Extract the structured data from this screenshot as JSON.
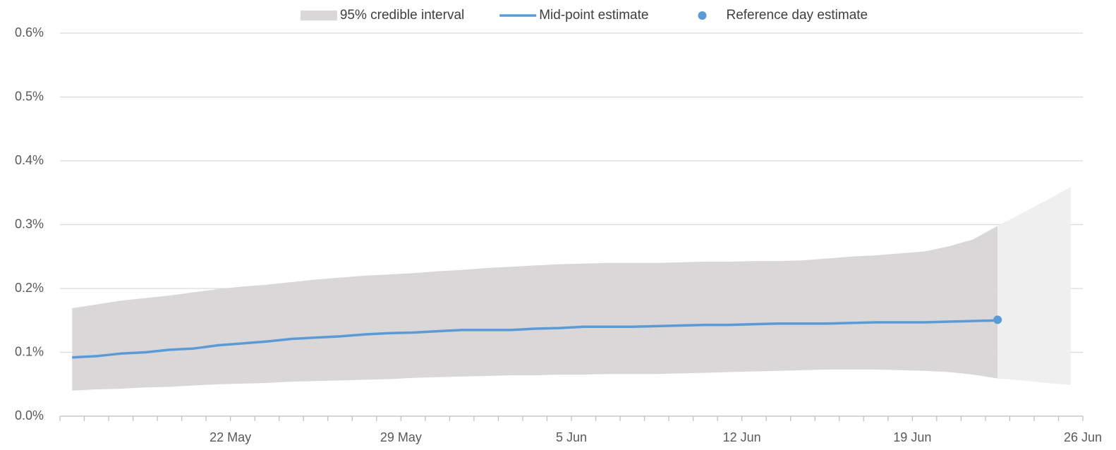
{
  "chart_data": {
    "type": "line",
    "legend": "top",
    "grid": true,
    "categories": [
      null,
      null,
      null,
      null,
      null,
      null,
      null,
      "22 May",
      null,
      null,
      null,
      null,
      null,
      null,
      "29 May",
      null,
      null,
      null,
      null,
      null,
      null,
      "5 Jun",
      null,
      null,
      null,
      null,
      null,
      null,
      "12 Jun",
      null,
      null,
      null,
      null,
      null,
      null,
      "19 Jun",
      null,
      null,
      null,
      null,
      null,
      null,
      "26 Jun"
    ],
    "ylim": [
      0,
      0.6
    ],
    "yticks": [
      {
        "value": 0,
        "label": "0.0%"
      },
      {
        "value": 0.1,
        "label": "0.1%"
      },
      {
        "value": 0.2,
        "label": "0.2%"
      },
      {
        "value": 0.3,
        "label": "0.3%"
      },
      {
        "value": 0.4,
        "label": "0.4%"
      },
      {
        "value": 0.5,
        "label": "0.5%"
      },
      {
        "value": 0.6,
        "label": "0.6%"
      }
    ],
    "series": [
      {
        "name": "95% credible interval",
        "type": "band",
        "color": "#d9d7d8",
        "upper": [
          0.169,
          0.175,
          0.181,
          0.185,
          0.189,
          0.194,
          0.199,
          0.203,
          0.206,
          0.21,
          0.214,
          0.217,
          0.22,
          0.222,
          0.224,
          0.227,
          0.229,
          0.232,
          0.234,
          0.236,
          0.238,
          0.239,
          0.24,
          0.24,
          0.24,
          0.241,
          0.242,
          0.242,
          0.243,
          0.243,
          0.244,
          0.247,
          0.25,
          0.252,
          0.255,
          0.258,
          0.266,
          0.277,
          0.298,
          null,
          null,
          null,
          null
        ],
        "lower": [
          0.04,
          0.042,
          0.043,
          0.045,
          0.046,
          0.048,
          0.05,
          0.051,
          0.052,
          0.054,
          0.055,
          0.056,
          0.057,
          0.058,
          0.06,
          0.061,
          0.062,
          0.063,
          0.064,
          0.064,
          0.065,
          0.065,
          0.066,
          0.066,
          0.066,
          0.067,
          0.068,
          0.069,
          0.07,
          0.071,
          0.072,
          0.073,
          0.073,
          0.073,
          0.072,
          0.071,
          0.069,
          0.065,
          0.059,
          null,
          null,
          null,
          null
        ]
      },
      {
        "type": "band",
        "color": "#efefef",
        "upper": [
          null,
          null,
          null,
          null,
          null,
          null,
          null,
          null,
          null,
          null,
          null,
          null,
          null,
          null,
          null,
          null,
          null,
          null,
          null,
          null,
          null,
          null,
          null,
          null,
          null,
          null,
          null,
          null,
          null,
          null,
          null,
          null,
          null,
          null,
          null,
          null,
          null,
          null,
          0.298,
          0.318,
          0.338,
          0.359,
          null
        ],
        "lower": [
          null,
          null,
          null,
          null,
          null,
          null,
          null,
          null,
          null,
          null,
          null,
          null,
          null,
          null,
          null,
          null,
          null,
          null,
          null,
          null,
          null,
          null,
          null,
          null,
          null,
          null,
          null,
          null,
          null,
          null,
          null,
          null,
          null,
          null,
          null,
          null,
          null,
          null,
          0.059,
          0.056,
          0.052,
          0.049,
          null
        ]
      },
      {
        "name": "Mid-point estimate",
        "type": "line",
        "color": "#5b9bd5",
        "values": [
          0.092,
          0.094,
          0.098,
          0.1,
          0.104,
          0.106,
          0.111,
          0.114,
          0.117,
          0.121,
          0.123,
          0.125,
          0.128,
          0.13,
          0.131,
          0.133,
          0.135,
          0.135,
          0.135,
          0.137,
          0.138,
          0.14,
          0.14,
          0.14,
          0.141,
          0.142,
          0.143,
          0.143,
          0.144,
          0.145,
          0.145,
          0.145,
          0.146,
          0.147,
          0.147,
          0.147,
          0.148,
          0.149,
          0.15,
          null,
          null,
          null,
          null
        ]
      },
      {
        "name": "Reference day estimate",
        "type": "point",
        "color": "#5b9bd5",
        "values": [
          null,
          null,
          null,
          null,
          null,
          null,
          null,
          null,
          null,
          null,
          null,
          null,
          null,
          null,
          null,
          null,
          null,
          null,
          null,
          null,
          null,
          null,
          null,
          null,
          null,
          null,
          null,
          null,
          null,
          null,
          null,
          null,
          null,
          null,
          null,
          null,
          null,
          null,
          0.151,
          null,
          null,
          null,
          null
        ]
      }
    ]
  }
}
